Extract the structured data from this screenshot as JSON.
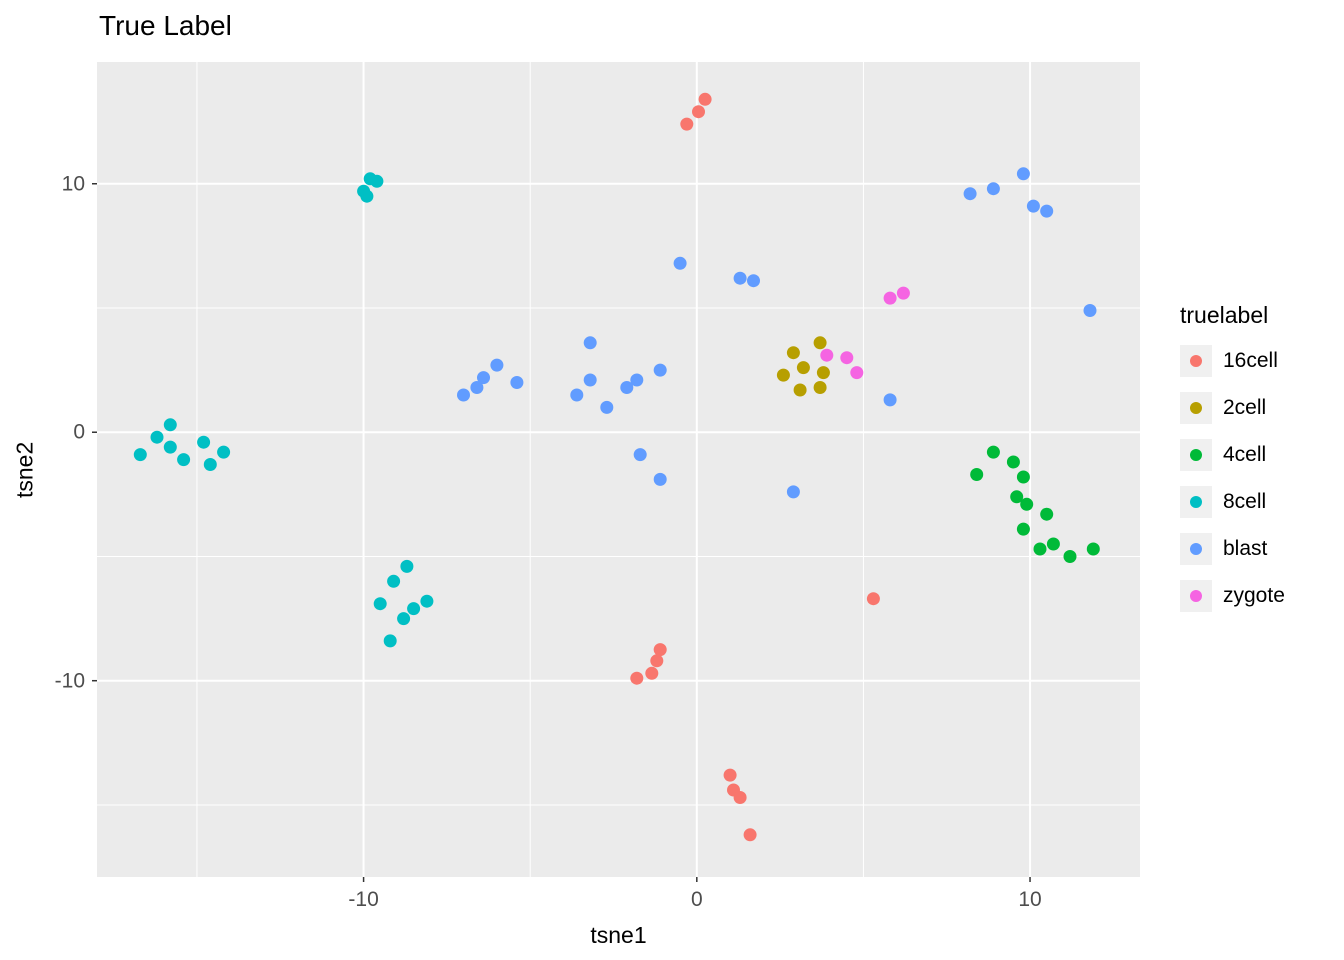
{
  "chart_data": {
    "type": "scatter",
    "title": "True Label",
    "xlabel": "tsne1",
    "ylabel": "tsne2",
    "legend_title": "truelabel",
    "legend_position": "right",
    "grid": true,
    "panel_color": "#EBEBEB",
    "gridline_color": "#FFFFFF",
    "tick_label_color": "#4D4D4D",
    "xlim": [
      -18.0,
      13.3
    ],
    "ylim": [
      -17.9,
      14.9
    ],
    "x_ticks": [
      -10,
      0,
      10
    ],
    "y_ticks": [
      -10,
      0,
      10
    ],
    "x_minor": [
      -15,
      -5,
      5
    ],
    "y_minor": [
      -15,
      -5,
      5
    ],
    "series": [
      {
        "name": "16cell",
        "color": "#F8766D",
        "points": [
          [
            -0.3,
            12.4
          ],
          [
            0.05,
            12.9
          ],
          [
            0.25,
            13.4
          ],
          [
            -1.8,
            -9.9
          ],
          [
            -1.35,
            -9.7
          ],
          [
            -1.2,
            -9.2
          ],
          [
            -1.1,
            -8.75
          ],
          [
            1.0,
            -13.8
          ],
          [
            1.1,
            -14.4
          ],
          [
            1.3,
            -14.7
          ],
          [
            1.6,
            -16.2
          ],
          [
            5.3,
            -6.7
          ]
        ]
      },
      {
        "name": "2cell",
        "color": "#B79F00",
        "points": [
          [
            2.9,
            3.2
          ],
          [
            3.7,
            3.6
          ],
          [
            2.6,
            2.3
          ],
          [
            3.2,
            2.6
          ],
          [
            3.8,
            2.4
          ],
          [
            3.1,
            1.7
          ],
          [
            3.7,
            1.8
          ]
        ]
      },
      {
        "name": "4cell",
        "color": "#00BA38",
        "points": [
          [
            8.9,
            -0.8
          ],
          [
            8.4,
            -1.7
          ],
          [
            9.5,
            -1.2
          ],
          [
            9.8,
            -1.8
          ],
          [
            9.6,
            -2.6
          ],
          [
            9.9,
            -2.9
          ],
          [
            10.5,
            -3.3
          ],
          [
            9.8,
            -3.9
          ],
          [
            10.3,
            -4.7
          ],
          [
            10.7,
            -4.5
          ],
          [
            11.2,
            -5.0
          ],
          [
            11.9,
            -4.7
          ]
        ]
      },
      {
        "name": "8cell",
        "color": "#00BFC4",
        "points": [
          [
            -10.0,
            9.7
          ],
          [
            -9.8,
            10.2
          ],
          [
            -9.6,
            10.1
          ],
          [
            -9.9,
            9.5
          ],
          [
            -16.7,
            -0.9
          ],
          [
            -16.2,
            -0.2
          ],
          [
            -15.8,
            0.3
          ],
          [
            -15.8,
            -0.6
          ],
          [
            -15.4,
            -1.1
          ],
          [
            -14.8,
            -0.4
          ],
          [
            -14.6,
            -1.3
          ],
          [
            -14.2,
            -0.8
          ],
          [
            -8.7,
            -5.4
          ],
          [
            -9.1,
            -6.0
          ],
          [
            -9.5,
            -6.9
          ],
          [
            -8.1,
            -6.8
          ],
          [
            -8.5,
            -7.1
          ],
          [
            -8.8,
            -7.5
          ],
          [
            -9.2,
            -8.4
          ]
        ]
      },
      {
        "name": "blast",
        "color": "#619CFF",
        "points": [
          [
            -0.5,
            6.8
          ],
          [
            1.3,
            6.2
          ],
          [
            1.7,
            6.1
          ],
          [
            8.2,
            9.6
          ],
          [
            8.9,
            9.8
          ],
          [
            9.8,
            10.4
          ],
          [
            10.1,
            9.1
          ],
          [
            10.5,
            8.9
          ],
          [
            11.8,
            4.9
          ],
          [
            -7.0,
            1.5
          ],
          [
            -6.6,
            1.8
          ],
          [
            -6.4,
            2.2
          ],
          [
            -6.0,
            2.7
          ],
          [
            -5.4,
            2.0
          ],
          [
            -3.2,
            3.6
          ],
          [
            -3.6,
            1.5
          ],
          [
            -3.2,
            2.1
          ],
          [
            -2.7,
            1.0
          ],
          [
            -2.1,
            1.8
          ],
          [
            -1.8,
            2.1
          ],
          [
            -1.1,
            2.5
          ],
          [
            -1.7,
            -0.9
          ],
          [
            -1.1,
            -1.9
          ],
          [
            2.9,
            -2.4
          ],
          [
            5.8,
            1.3
          ]
        ]
      },
      {
        "name": "zygote",
        "color": "#F564E2",
        "points": [
          [
            5.8,
            5.4
          ],
          [
            6.2,
            5.6
          ],
          [
            3.9,
            3.1
          ],
          [
            4.5,
            3.0
          ],
          [
            4.8,
            2.4
          ]
        ]
      }
    ]
  }
}
